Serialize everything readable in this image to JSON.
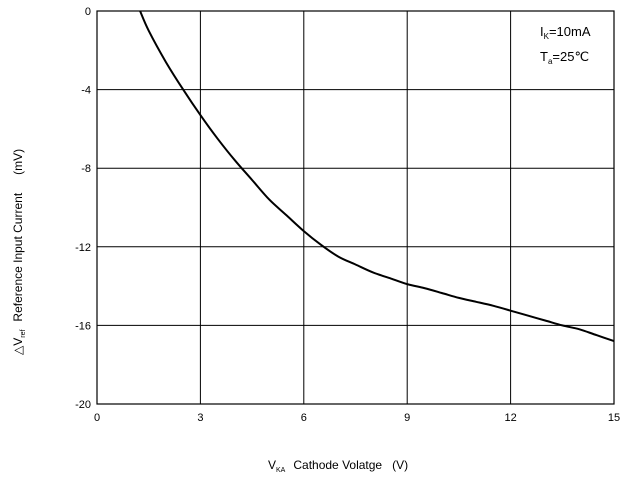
{
  "chart_data": {
    "type": "line",
    "title": "",
    "xlabel": {
      "symbol": "V",
      "sub": "KA",
      "text": "Cathode Volatge",
      "unit": "(V)"
    },
    "ylabel": {
      "prefix": "△",
      "symbol": "V",
      "sub": "ref",
      "text": "Reference Input Current",
      "unit": "(mV)"
    },
    "xlim": [
      0,
      15
    ],
    "ylim": [
      -20,
      0
    ],
    "xticks": [
      0,
      3,
      6,
      9,
      12,
      15
    ],
    "xtick_labels": [
      "0",
      "3",
      "6",
      "9",
      "12",
      "15"
    ],
    "yticks": [
      0,
      -4,
      -8,
      -12,
      -16,
      -20
    ],
    "ytick_labels": [
      "0",
      "-4",
      "-8",
      "-12",
      "-16",
      "-20"
    ],
    "grid": true,
    "legend": "none",
    "line_color": "#000000",
    "annotations": [
      {
        "symbol": "I",
        "sub": "K",
        "rest": "=10mA"
      },
      {
        "symbol": "T",
        "sub": "a",
        "rest": "=25℃"
      }
    ],
    "series": [
      {
        "x": [
          1.25,
          1.5,
          2.0,
          2.5,
          3.0,
          3.5,
          4.0,
          4.5,
          5.0,
          5.5,
          6.0,
          6.5,
          7.0,
          7.5,
          8.0,
          8.5,
          9.0,
          9.5,
          10.0,
          10.5,
          11.0,
          11.5,
          12.0,
          12.5,
          13.0,
          13.5,
          14.0,
          14.5,
          15.0
        ],
        "y": [
          0.0,
          -1.0,
          -2.6,
          -4.0,
          -5.3,
          -6.5,
          -7.6,
          -8.6,
          -9.6,
          -10.4,
          -11.2,
          -11.9,
          -12.5,
          -12.9,
          -13.3,
          -13.6,
          -13.9,
          -14.1,
          -14.35,
          -14.6,
          -14.8,
          -15.0,
          -15.25,
          -15.5,
          -15.75,
          -16.0,
          -16.2,
          -16.5,
          -16.8
        ]
      }
    ]
  }
}
